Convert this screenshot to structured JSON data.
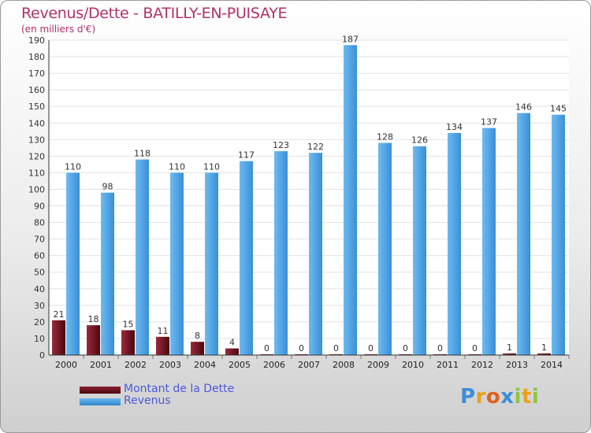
{
  "header": {
    "title": "Revenus/Dette - BATILLY-EN-PUISAYE",
    "subtitle": "(en milliers d'€)"
  },
  "chart_data": {
    "type": "bar",
    "categories": [
      "2000",
      "2001",
      "2002",
      "2003",
      "2004",
      "2005",
      "2006",
      "2007",
      "2008",
      "2009",
      "2010",
      "2011",
      "2012",
      "2013",
      "2014"
    ],
    "series": [
      {
        "name": "Montant de la Dette",
        "values": [
          21,
          18,
          15,
          11,
          8,
          4,
          0,
          0,
          0,
          0,
          0,
          0,
          0,
          1,
          1
        ],
        "color": "#7a1020"
      },
      {
        "name": "Revenus",
        "values": [
          110,
          98,
          118,
          110,
          110,
          117,
          123,
          122,
          187,
          128,
          126,
          134,
          137,
          146,
          145
        ],
        "color": "#4aa3e8"
      }
    ],
    "yticks": [
      0,
      10,
      20,
      30,
      40,
      50,
      60,
      70,
      80,
      90,
      100,
      110,
      120,
      130,
      140,
      150,
      160,
      170,
      180,
      190
    ],
    "ylim": [
      0,
      190
    ],
    "grid": true,
    "legend_position": "bottom-left",
    "data_labels": true
  },
  "legend": {
    "items": [
      {
        "label": "Montant de la Dette",
        "color": "#6a0f1a"
      },
      {
        "label": "Revenus",
        "color": "#4aa3e8"
      }
    ]
  },
  "logo": {
    "letters": [
      "P",
      "r",
      "o",
      "x",
      "i",
      "t",
      "i"
    ],
    "colors": [
      "#3a8fd8",
      "#e8a020",
      "#e06020",
      "#3a8fd8",
      "#8cc63f",
      "#e8a020",
      "#8cc63f"
    ]
  }
}
